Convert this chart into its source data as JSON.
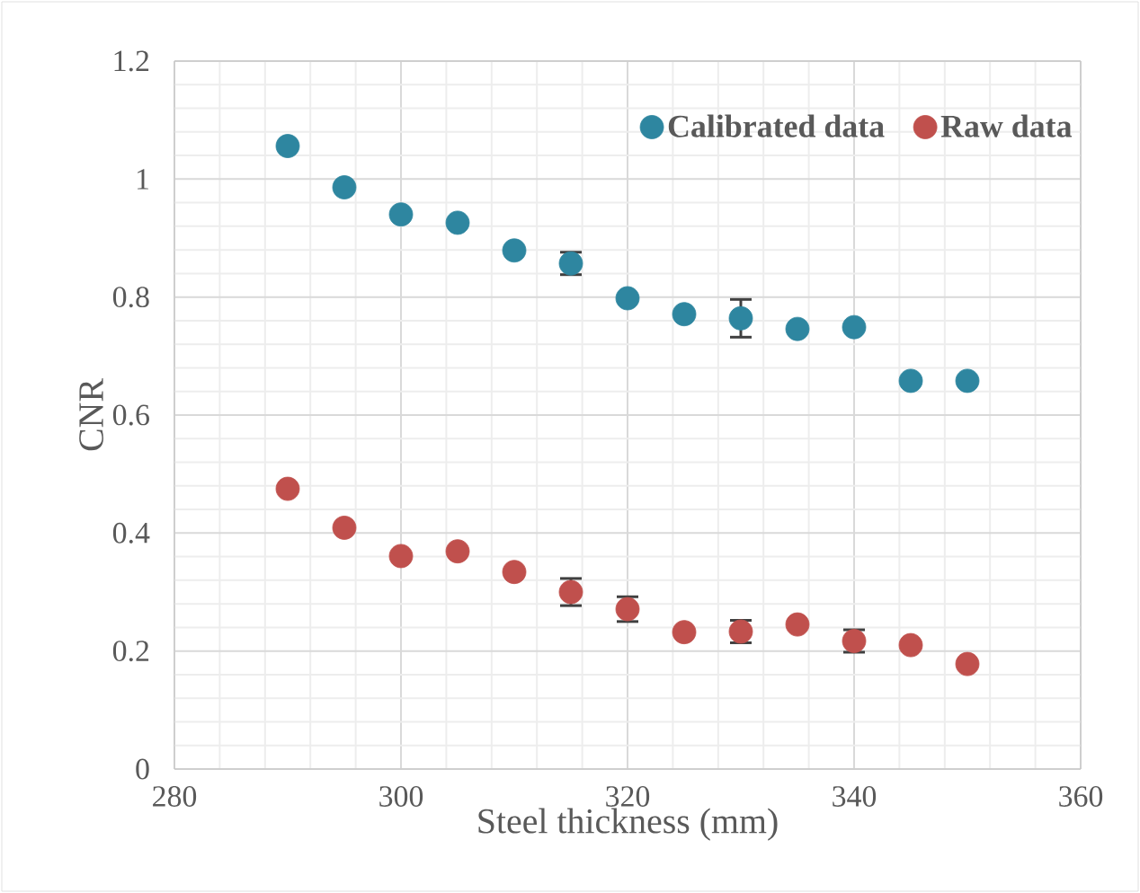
{
  "chart_data": {
    "type": "scatter",
    "xlabel": "Steel thickness (mm)",
    "ylabel": "CNR",
    "x": [
      290,
      295,
      300,
      305,
      310,
      315,
      320,
      325,
      330,
      335,
      340,
      345,
      350
    ],
    "series": [
      {
        "name": "Calibrated data",
        "color": "#2e86a0",
        "values": [
          1.056,
          0.986,
          0.94,
          0.926,
          0.879,
          0.857,
          0.798,
          0.771,
          0.764,
          0.746,
          0.749,
          0.658,
          0.658
        ],
        "errors": [
          null,
          null,
          null,
          null,
          null,
          0.019,
          null,
          null,
          0.032,
          null,
          null,
          null,
          null
        ]
      },
      {
        "name": "Raw data",
        "color": "#c0504d",
        "values": [
          0.475,
          0.409,
          0.361,
          0.369,
          0.334,
          0.3,
          0.271,
          0.232,
          0.233,
          0.245,
          0.217,
          0.21,
          0.178
        ],
        "errors": [
          null,
          null,
          null,
          null,
          null,
          0.023,
          0.021,
          null,
          0.019,
          null,
          0.019,
          null,
          null
        ]
      }
    ],
    "xlim": [
      280,
      360
    ],
    "xticks": [
      280,
      300,
      320,
      340,
      360
    ],
    "ylim": [
      0,
      1.2
    ],
    "yticks": [
      0,
      0.2,
      0.4,
      0.6,
      0.8,
      1,
      1.2
    ],
    "grid": true,
    "legend": "top right",
    "marker": "circle"
  }
}
